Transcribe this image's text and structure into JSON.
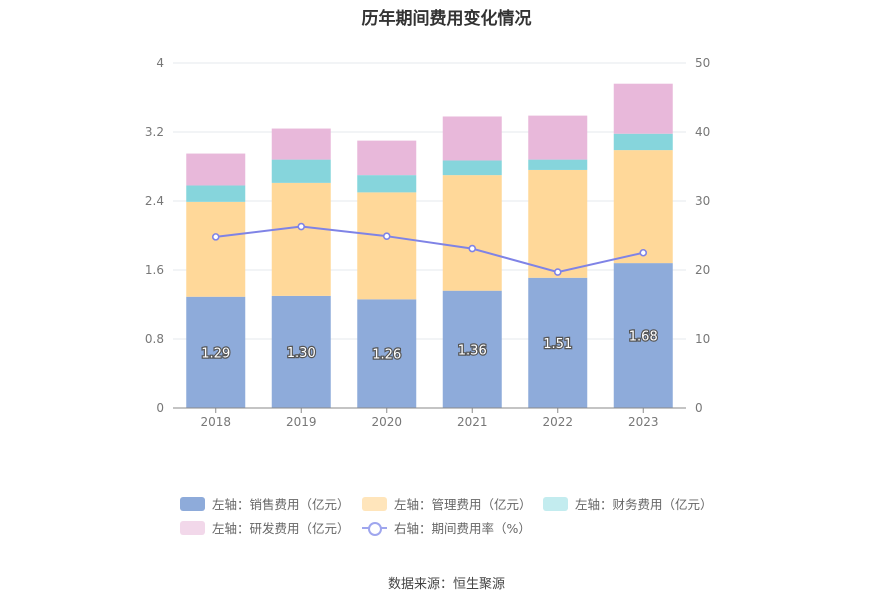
{
  "chart_data": {
    "type": "bar",
    "title": "历年期间费用变化情况",
    "categories": [
      "2018",
      "2019",
      "2020",
      "2021",
      "2022",
      "2023"
    ],
    "left_axis": {
      "min": 0,
      "max": 4,
      "ticks": [
        "0",
        "0.8",
        "1.6",
        "2.4",
        "3.2",
        "4"
      ]
    },
    "right_axis": {
      "min": 0,
      "max": 50,
      "ticks": [
        "0",
        "10",
        "20",
        "30",
        "40",
        "50"
      ]
    },
    "grid": true,
    "legend_position": "bottom",
    "series": [
      {
        "name": "左轴：销售费用（亿元）",
        "axis": "left",
        "type": "bar",
        "color": "#8eabda",
        "values": [
          1.29,
          1.3,
          1.26,
          1.36,
          1.51,
          1.68
        ],
        "labels": [
          "1.29",
          "1.30",
          "1.26",
          "1.36",
          "1.51",
          "1.68"
        ]
      },
      {
        "name": "左轴：管理费用（亿元）",
        "axis": "left",
        "type": "bar",
        "color": "#ffd899",
        "values": [
          1.1,
          1.31,
          1.24,
          1.34,
          1.25,
          1.31
        ]
      },
      {
        "name": "左轴：财务费用（亿元）",
        "axis": "left",
        "type": "bar",
        "color": "#86d5dc",
        "values": [
          0.19,
          0.27,
          0.2,
          0.17,
          0.12,
          0.19
        ]
      },
      {
        "name": "左轴：研发费用（亿元）",
        "axis": "left",
        "type": "bar",
        "color": "#e8b8da",
        "values": [
          0.37,
          0.36,
          0.4,
          0.51,
          0.51,
          0.58
        ]
      },
      {
        "name": "右轴：期间费用率（%）",
        "axis": "right",
        "type": "line",
        "color": "#7f83e6",
        "values": [
          24.8,
          26.3,
          24.9,
          23.1,
          19.7,
          22.5
        ]
      }
    ]
  },
  "legend": [
    {
      "label": "左轴：销售费用（亿元）",
      "color": "#8eabda"
    },
    {
      "label": "左轴：管理费用（亿元）",
      "color": "#ffe5bb"
    },
    {
      "label": "左轴：财务费用（亿元）",
      "color": "#c3ecef"
    },
    {
      "label": "左轴：研发费用（亿元）",
      "color": "#f2d8ea"
    },
    {
      "label": "右轴：期间费用率（%）",
      "color": "#9fa6ee"
    }
  ],
  "footer": "数据来源：恒生聚源"
}
